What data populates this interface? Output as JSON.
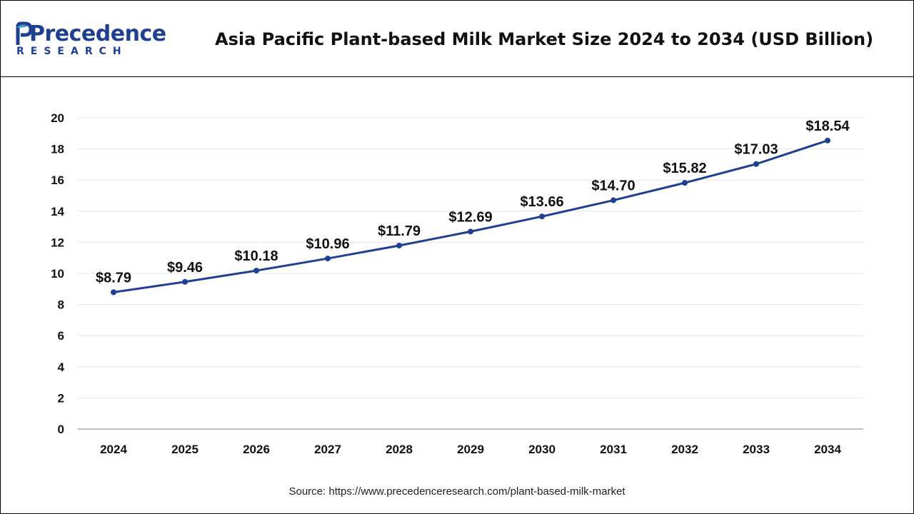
{
  "brand": {
    "name": "Precedence",
    "sub": "RESEARCH",
    "color": "#1f3f93",
    "accent": "#3aa0c8"
  },
  "header": {
    "title": "Asia Pacific Plant-based Milk Market Size 2024 to 2034 (USD Billion)"
  },
  "source": "Source: https://www.precedenceresearch.com/plant-based-milk-market",
  "chart_data": {
    "type": "line",
    "title": "Asia Pacific Plant-based Milk Market Size 2024 to 2034 (USD Billion)",
    "xlabel": "",
    "ylabel": "",
    "ylim": [
      0,
      20
    ],
    "yticks": [
      0,
      2,
      4,
      6,
      8,
      10,
      12,
      14,
      16,
      18,
      20
    ],
    "grid": true,
    "legend": "none",
    "x": [
      "2024",
      "2025",
      "2026",
      "2027",
      "2028",
      "2029",
      "2030",
      "2031",
      "2032",
      "2033",
      "2034"
    ],
    "series": [
      {
        "color": "#1f3f93",
        "values": [
          8.79,
          9.46,
          10.18,
          10.96,
          11.79,
          12.69,
          13.66,
          14.7,
          15.82,
          17.03,
          18.54
        ],
        "labels": [
          "$8.79",
          "$9.46",
          "$10.18",
          "$10.96",
          "$11.79",
          "$12.69",
          "$13.66",
          "$14.70",
          "$15.82",
          "$17.03",
          "$18.54"
        ]
      }
    ]
  }
}
